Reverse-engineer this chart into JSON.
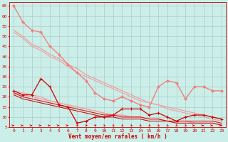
{
  "bg_color": "#cceee8",
  "grid_color": "#aacccc",
  "xlabel": "Vent moyen/en rafales ( km/h )",
  "xlim": [
    -0.5,
    23.5
  ],
  "ylim": [
    5,
    67
  ],
  "yticks": [
    5,
    10,
    15,
    20,
    25,
    30,
    35,
    40,
    45,
    50,
    55,
    60,
    65
  ],
  "xticks": [
    0,
    1,
    2,
    3,
    4,
    5,
    6,
    7,
    8,
    9,
    10,
    11,
    12,
    13,
    14,
    15,
    16,
    17,
    18,
    19,
    20,
    21,
    22,
    23
  ],
  "lines": [
    {
      "x": [
        0,
        1,
        2,
        3,
        4,
        5,
        6,
        7,
        8,
        9,
        10,
        11,
        12,
        13,
        14,
        15,
        16,
        17,
        18,
        19,
        20,
        21,
        22,
        23
      ],
      "y": [
        65,
        57,
        53,
        52,
        45,
        41,
        36,
        32,
        28,
        22,
        19,
        18,
        20,
        18,
        16,
        15,
        25,
        28,
        27,
        19,
        25,
        25,
        23,
        23
      ],
      "color": "#f08080",
      "lw": 1.0,
      "marker": "D",
      "ms": 2.0,
      "mew": 0.5,
      "zorder": 3
    },
    {
      "x": [
        0,
        1,
        2,
        3,
        4,
        5,
        6,
        7,
        8,
        9,
        10,
        11,
        12,
        13,
        14,
        15,
        16,
        17,
        18,
        19,
        20,
        21,
        22,
        23
      ],
      "y": [
        53,
        50,
        46,
        44,
        41,
        39,
        36,
        34,
        31,
        29,
        27,
        25,
        23,
        21,
        19,
        17,
        16,
        15,
        14,
        13,
        12,
        11,
        10,
        9
      ],
      "color": "#f09898",
      "lw": 0.8,
      "marker": null,
      "ms": 0,
      "mew": 0,
      "zorder": 2
    },
    {
      "x": [
        0,
        1,
        2,
        3,
        4,
        5,
        6,
        7,
        8,
        9,
        10,
        11,
        12,
        13,
        14,
        15,
        16,
        17,
        18,
        19,
        20,
        21,
        22,
        23
      ],
      "y": [
        52,
        49,
        45,
        43,
        40,
        38,
        35,
        32,
        30,
        28,
        26,
        24,
        22,
        20,
        18,
        17,
        16,
        14,
        13,
        12,
        11,
        10,
        9,
        8
      ],
      "color": "#f0a0a0",
      "lw": 0.8,
      "marker": null,
      "ms": 0,
      "mew": 0,
      "zorder": 2
    },
    {
      "x": [
        0,
        1,
        2,
        3,
        4,
        5,
        6,
        7,
        8,
        9,
        10,
        11,
        12,
        13,
        14,
        15,
        16,
        17,
        18,
        19,
        20,
        21,
        22,
        23
      ],
      "y": [
        22,
        21,
        20,
        19,
        18,
        17,
        16,
        15,
        14,
        13,
        12,
        11,
        11,
        10,
        10,
        9,
        9,
        8,
        8,
        8,
        7,
        7,
        7,
        6
      ],
      "color": "#f09898",
      "lw": 0.8,
      "marker": null,
      "ms": 0,
      "mew": 0,
      "zorder": 2
    },
    {
      "x": [
        0,
        1,
        2,
        3,
        4,
        5,
        6,
        7,
        8,
        9,
        10,
        11,
        12,
        13,
        14,
        15,
        16,
        17,
        18,
        19,
        20,
        21,
        22,
        23
      ],
      "y": [
        23,
        22,
        21,
        20,
        18,
        17,
        16,
        15,
        14,
        13,
        12,
        11,
        11,
        10,
        10,
        9,
        9,
        8,
        8,
        8,
        7,
        7,
        7,
        6
      ],
      "color": "#f0a0a0",
      "lw": 0.8,
      "marker": null,
      "ms": 0,
      "mew": 0,
      "zorder": 2
    },
    {
      "x": [
        0,
        1,
        2,
        3,
        4,
        5,
        6,
        7,
        8,
        9,
        10,
        11,
        12,
        13,
        14,
        15,
        16,
        17,
        18,
        19,
        20,
        21,
        22,
        23
      ],
      "y": [
        23,
        21,
        21,
        29,
        25,
        16,
        15,
        7,
        8,
        10,
        10,
        11,
        14,
        14,
        14,
        11,
        12,
        10,
        8,
        10,
        11,
        11,
        10,
        9
      ],
      "color": "#cc0000",
      "lw": 0.9,
      "marker": "+",
      "ms": 3.5,
      "mew": 0.8,
      "zorder": 4
    },
    {
      "x": [
        0,
        1,
        2,
        3,
        4,
        5,
        6,
        7,
        8,
        9,
        10,
        11,
        12,
        13,
        14,
        15,
        16,
        17,
        18,
        19,
        20,
        21,
        22,
        23
      ],
      "y": [
        22,
        20,
        19,
        18,
        17,
        16,
        15,
        14,
        13,
        12,
        11,
        11,
        10,
        10,
        10,
        9,
        9,
        8,
        8,
        8,
        8,
        8,
        8,
        7
      ],
      "color": "#dd1111",
      "lw": 0.8,
      "marker": null,
      "ms": 0,
      "mew": 0,
      "zorder": 3
    },
    {
      "x": [
        0,
        1,
        2,
        3,
        4,
        5,
        6,
        7,
        8,
        9,
        10,
        11,
        12,
        13,
        14,
        15,
        16,
        17,
        18,
        19,
        20,
        21,
        22,
        23
      ],
      "y": [
        21,
        19,
        18,
        17,
        16,
        15,
        14,
        13,
        12,
        11,
        10,
        10,
        9,
        9,
        9,
        8,
        8,
        8,
        7,
        7,
        7,
        7,
        7,
        6
      ],
      "color": "#cc1111",
      "lw": 0.8,
      "marker": null,
      "ms": 0,
      "mew": 0,
      "zorder": 3
    }
  ],
  "arrow_color": "#cc0000",
  "arrow_angles_deg": [
    0,
    0,
    0,
    0,
    0,
    0,
    0,
    45,
    45,
    45,
    315,
    315,
    315,
    315,
    315,
    315,
    315,
    315,
    315,
    315,
    0,
    0,
    0,
    0
  ]
}
